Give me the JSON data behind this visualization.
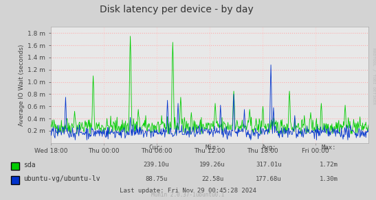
{
  "title": "Disk latency per device - by day",
  "ylabel": "Average IO Wait (seconds)",
  "background_color": "#d3d3d3",
  "plot_bg_color": "#e8e8e8",
  "grid_color_h": "#ffaaaa",
  "grid_color_v": "#ffcccc",
  "x_ticks_labels": [
    "Wed 18:00",
    "Thu 00:00",
    "Thu 06:00",
    "Thu 12:00",
    "Thu 18:00",
    "Fri 00:00"
  ],
  "ylim": [
    0,
    1.9
  ],
  "ytick_labels": [
    "0.2 m",
    "0.4 m",
    "0.6 m",
    "0.8 m",
    "1.0 m",
    "1.2 m",
    "1.4 m",
    "1.6 m",
    "1.8 m"
  ],
  "sda_color": "#00cc00",
  "ubuntu_color": "#0033cc",
  "legend": [
    {
      "label": "sda",
      "color": "#00cc00"
    },
    {
      "label": "ubuntu-vg/ubuntu-lv",
      "color": "#0033cc"
    }
  ],
  "stats_header": [
    "Cur:",
    "Min:",
    "Avg:",
    "Max:"
  ],
  "stats": {
    "sda": {
      "cur": "239.10u",
      "min": "199.26u",
      "avg": "317.01u",
      "max": "1.72m"
    },
    "ubuntu": {
      "cur": "88.75u",
      "min": "22.58u",
      "avg": "177.68u",
      "max": "1.30m"
    }
  },
  "footer": "Last update: Fri Nov 29 00:45:28 2024",
  "watermark": "Munin 2.0.37-1ubuntu0.1",
  "rrdtool_text": "RRDTOOL / TOBI OETIKER"
}
